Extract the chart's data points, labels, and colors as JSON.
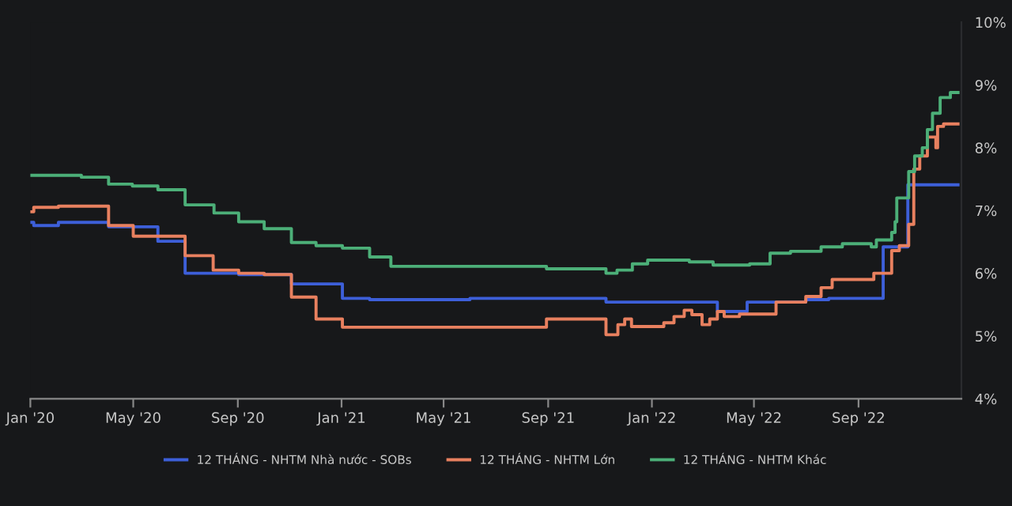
{
  "chart_data": {
    "type": "step",
    "xlim": [
      "2020-01-01",
      "2022-12-31"
    ],
    "xticks": [
      {
        "value": "2020-01-01",
        "label": "Jan '20"
      },
      {
        "value": "2020-05-01",
        "label": "May '20"
      },
      {
        "value": "2020-09-01",
        "label": "Sep '20"
      },
      {
        "value": "2021-01-01",
        "label": "Jan '21"
      },
      {
        "value": "2021-05-01",
        "label": "May '21"
      },
      {
        "value": "2021-09-01",
        "label": "Sep '21"
      },
      {
        "value": "2022-01-01",
        "label": "Jan '22"
      },
      {
        "value": "2022-05-01",
        "label": "May '22"
      },
      {
        "value": "2022-09-01",
        "label": "Sep '22"
      }
    ],
    "ylim": [
      4,
      10
    ],
    "yticks": [
      {
        "value": 4,
        "label": "4%"
      },
      {
        "value": 5,
        "label": "5%"
      },
      {
        "value": 6,
        "label": "6%"
      },
      {
        "value": 7,
        "label": "7%"
      },
      {
        "value": 8,
        "label": "8%"
      },
      {
        "value": 9,
        "label": "9%"
      },
      {
        "value": 10,
        "label": "10%"
      }
    ],
    "grid": false,
    "legend": "bottom",
    "marker": "none",
    "line_style": "solid",
    "series": [
      {
        "name": "12 THÁNG - NHTM Nhà nước - SOBs",
        "color": "#3d5fd9",
        "x": [
          "2020-01-01",
          "2020-01-05",
          "2020-02-03",
          "2020-04-02",
          "2020-05-30",
          "2020-07-01",
          "2020-09-02",
          "2020-11-03",
          "2021-01-02",
          "2021-02-03",
          "2021-06-01",
          "2021-11-08",
          "2022-03-19",
          "2022-04-23",
          "2022-07-01",
          "2022-07-28",
          "2022-09-30",
          "2022-10-29",
          "2022-12-27"
        ],
        "values": [
          6.81,
          6.76,
          6.81,
          6.74,
          6.51,
          6.0,
          5.98,
          5.83,
          5.6,
          5.58,
          5.6,
          5.54,
          5.39,
          5.54,
          5.58,
          5.6,
          6.42,
          7.41,
          7.41
        ]
      },
      {
        "name": "12 THÁNG - NHTM Lớn",
        "color": "#e8805f",
        "x": [
          "2020-01-01",
          "2020-01-05",
          "2020-02-03",
          "2020-04-02",
          "2020-05-01",
          "2020-07-01",
          "2020-08-03",
          "2020-09-02",
          "2020-10-02",
          "2020-11-03",
          "2020-12-02",
          "2021-01-02",
          "2021-08-30",
          "2021-11-08",
          "2021-11-22",
          "2021-11-30",
          "2021-12-08",
          "2022-01-15",
          "2022-01-27",
          "2022-02-08",
          "2022-02-17",
          "2022-03-01",
          "2022-03-10",
          "2022-03-19",
          "2022-03-27",
          "2022-04-14",
          "2022-05-27",
          "2022-07-01",
          "2022-07-19",
          "2022-08-01",
          "2022-09-19",
          "2022-10-10",
          "2022-10-19",
          "2022-10-30",
          "2022-11-05",
          "2022-11-12",
          "2022-11-21",
          "2022-12-01",
          "2022-12-03",
          "2022-12-10",
          "2022-12-27"
        ],
        "values": [
          6.98,
          7.05,
          7.07,
          6.76,
          6.59,
          6.28,
          6.05,
          6.0,
          5.98,
          5.62,
          5.27,
          5.14,
          5.27,
          5.02,
          5.18,
          5.27,
          5.15,
          5.21,
          5.31,
          5.41,
          5.34,
          5.18,
          5.27,
          5.39,
          5.31,
          5.35,
          5.54,
          5.63,
          5.77,
          5.9,
          6.0,
          6.36,
          6.44,
          6.78,
          7.66,
          7.87,
          8.17,
          8.0,
          8.34,
          8.38,
          8.38
        ]
      },
      {
        "name": "12 THÁNG - NHTM Khác",
        "color": "#4caf78",
        "x": [
          "2020-01-01",
          "2020-03-01",
          "2020-04-02",
          "2020-04-30",
          "2020-05-30",
          "2020-07-01",
          "2020-08-04",
          "2020-09-02",
          "2020-10-02",
          "2020-11-03",
          "2020-12-02",
          "2021-01-02",
          "2021-02-03",
          "2021-02-28",
          "2021-08-30",
          "2021-11-08",
          "2021-11-21",
          "2021-12-09",
          "2021-12-27",
          "2022-02-14",
          "2022-03-14",
          "2022-04-26",
          "2022-05-20",
          "2022-06-13",
          "2022-07-19",
          "2022-08-13",
          "2022-09-13",
          "2022-09-16",
          "2022-09-22",
          "2022-10-10",
          "2022-10-14",
          "2022-10-16",
          "2022-10-30",
          "2022-11-06",
          "2022-11-15",
          "2022-11-21",
          "2022-11-27",
          "2022-12-06",
          "2022-12-18",
          "2022-12-27"
        ],
        "values": [
          7.56,
          7.53,
          7.42,
          7.39,
          7.33,
          7.09,
          6.96,
          6.82,
          6.71,
          6.49,
          6.44,
          6.4,
          6.26,
          6.11,
          6.07,
          6.0,
          6.05,
          6.15,
          6.21,
          6.18,
          6.13,
          6.15,
          6.32,
          6.35,
          6.42,
          6.47,
          6.47,
          6.42,
          6.53,
          6.65,
          6.82,
          7.2,
          7.62,
          7.87,
          8.0,
          8.29,
          8.55,
          8.8,
          8.88,
          8.88
        ]
      }
    ]
  }
}
